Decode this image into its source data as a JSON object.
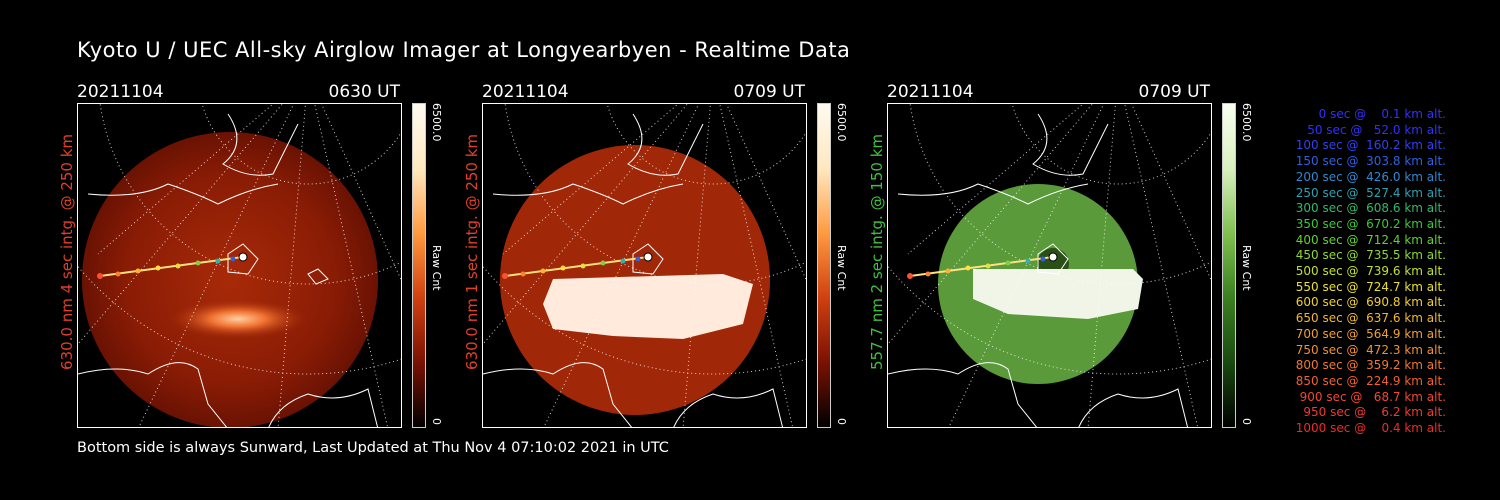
{
  "title": "Kyoto U / UEC All-sky Airglow Imager at Longyearbyen - Realtime Data",
  "footer": "Bottom side is always Sunward, Last Updated at Thu Nov  4 07:10:02 2021 in UTC",
  "panels": [
    {
      "date": "20211104",
      "time": "0630 UT",
      "ylabel": "630.0 nm 4 sec intg. @ 250 km",
      "label_color": "#e0402a",
      "cbar_max": "6500.0",
      "cbar_min": "0",
      "cbar_unit": "Raw Cnt",
      "scheme": "red",
      "saturation_fraction": 0.1
    },
    {
      "date": "20211104",
      "time": "0709 UT",
      "ylabel": "630.0 nm 1 sec intg. @ 250 km",
      "label_color": "#e0402a",
      "cbar_max": "6500.0",
      "cbar_min": "0",
      "cbar_unit": "Raw Cnt",
      "scheme": "red",
      "saturation_fraction": 0.9
    },
    {
      "date": "20211104",
      "time": "0709 UT",
      "ylabel": "557.7 nm 2 sec intg. @ 150 km",
      "label_color": "#3ec23e",
      "cbar_max": "6500.0",
      "cbar_min": "0",
      "cbar_unit": "Raw Cnt",
      "scheme": "green",
      "saturation_fraction": 0.9
    }
  ],
  "legend": [
    {
      "text": "   0 sec @    0.1 km alt.",
      "color": "#3030ff"
    },
    {
      "text": "  50 sec @   52.0 km alt.",
      "color": "#3030ff"
    },
    {
      "text": " 100 sec @  160.2 km alt.",
      "color": "#3040f0"
    },
    {
      "text": " 150 sec @  303.8 km alt.",
      "color": "#3060e0"
    },
    {
      "text": " 200 sec @  426.0 km alt.",
      "color": "#3088d0"
    },
    {
      "text": " 250 sec @  527.4 km alt.",
      "color": "#30a0b0"
    },
    {
      "text": " 300 sec @  608.6 km alt.",
      "color": "#30b870"
    },
    {
      "text": " 350 sec @  670.2 km alt.",
      "color": "#38c838"
    },
    {
      "text": " 400 sec @  712.4 km alt.",
      "color": "#60d030"
    },
    {
      "text": " 450 sec @  735.5 km alt.",
      "color": "#90d830"
    },
    {
      "text": " 500 sec @  739.6 km alt.",
      "color": "#c0e030"
    },
    {
      "text": " 550 sec @  724.7 km alt.",
      "color": "#e8e030"
    },
    {
      "text": " 600 sec @  690.8 km alt.",
      "color": "#f0d030"
    },
    {
      "text": " 650 sec @  637.6 km alt.",
      "color": "#f0b830"
    },
    {
      "text": " 700 sec @  564.9 km alt.",
      "color": "#f0a030"
    },
    {
      "text": " 750 sec @  472.3 km alt.",
      "color": "#f09030"
    },
    {
      "text": " 800 sec @  359.2 km alt.",
      "color": "#f07830"
    },
    {
      "text": " 850 sec @  224.9 km alt.",
      "color": "#f06030"
    },
    {
      "text": " 900 sec @   68.7 km alt.",
      "color": "#f04830"
    },
    {
      "text": " 950 sec @    6.2 km alt.",
      "color": "#f03a30"
    },
    {
      "text": "1000 sec @    0.4 km alt.",
      "color": "#f02a2a"
    }
  ]
}
